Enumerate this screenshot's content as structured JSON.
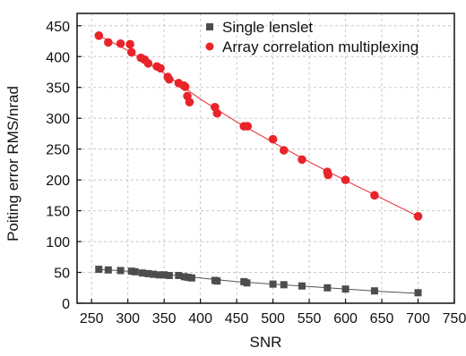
{
  "chart_data": {
    "type": "scatter",
    "xlabel": "SNR",
    "ylabel": "Poiting error RMS/nrad",
    "xlim": [
      230,
      750
    ],
    "ylim": [
      0,
      470
    ],
    "xticks": [
      250,
      300,
      350,
      400,
      450,
      500,
      550,
      600,
      650,
      700,
      750
    ],
    "yticks": [
      0,
      50,
      100,
      150,
      200,
      250,
      300,
      350,
      400,
      450
    ],
    "grid": true,
    "legend_position": "top-right",
    "series": [
      {
        "name": "Single lenslet",
        "marker": "square",
        "color": "#4d4d4d",
        "points": [
          [
            260,
            55
          ],
          [
            273,
            54
          ],
          [
            290,
            53
          ],
          [
            305,
            52
          ],
          [
            310,
            51
          ],
          [
            320,
            49
          ],
          [
            328,
            48
          ],
          [
            335,
            47
          ],
          [
            343,
            46
          ],
          [
            350,
            46
          ],
          [
            357,
            45
          ],
          [
            370,
            45
          ],
          [
            378,
            43
          ],
          [
            383,
            42
          ],
          [
            388,
            41
          ],
          [
            420,
            37
          ],
          [
            423,
            36
          ],
          [
            460,
            35
          ],
          [
            464,
            33
          ],
          [
            500,
            31
          ],
          [
            515,
            30
          ],
          [
            540,
            28
          ],
          [
            575,
            25
          ],
          [
            600,
            23
          ],
          [
            640,
            20
          ],
          [
            700,
            17
          ]
        ],
        "fit": [
          [
            260,
            55
          ],
          [
            300,
            52
          ],
          [
            350,
            47
          ],
          [
            400,
            41
          ],
          [
            450,
            35
          ],
          [
            500,
            31
          ],
          [
            550,
            27
          ],
          [
            600,
            23
          ],
          [
            650,
            19
          ],
          [
            700,
            16
          ]
        ]
      },
      {
        "name": "Array correlation multiplexing",
        "marker": "circle",
        "color": "#e8242a",
        "points": [
          [
            260,
            434
          ],
          [
            273,
            423
          ],
          [
            290,
            421
          ],
          [
            303,
            420
          ],
          [
            305,
            407
          ],
          [
            318,
            398
          ],
          [
            323,
            395
          ],
          [
            328,
            389
          ],
          [
            340,
            384
          ],
          [
            345,
            381
          ],
          [
            355,
            367
          ],
          [
            357,
            363
          ],
          [
            370,
            357
          ],
          [
            377,
            353
          ],
          [
            379,
            351
          ],
          [
            382,
            336
          ],
          [
            385,
            326
          ],
          [
            420,
            318
          ],
          [
            423,
            308
          ],
          [
            460,
            287
          ],
          [
            465,
            287
          ],
          [
            500,
            266
          ],
          [
            515,
            248
          ],
          [
            540,
            233
          ],
          [
            575,
            213
          ],
          [
            576,
            208
          ],
          [
            600,
            200
          ],
          [
            640,
            175
          ],
          [
            700,
            141
          ]
        ],
        "fit": [
          [
            260,
            434
          ],
          [
            300,
            410
          ],
          [
            350,
            373
          ],
          [
            400,
            331
          ],
          [
            450,
            294
          ],
          [
            500,
            261
          ],
          [
            550,
            229
          ],
          [
            600,
            199
          ],
          [
            650,
            170
          ],
          [
            700,
            141
          ]
        ]
      }
    ]
  }
}
